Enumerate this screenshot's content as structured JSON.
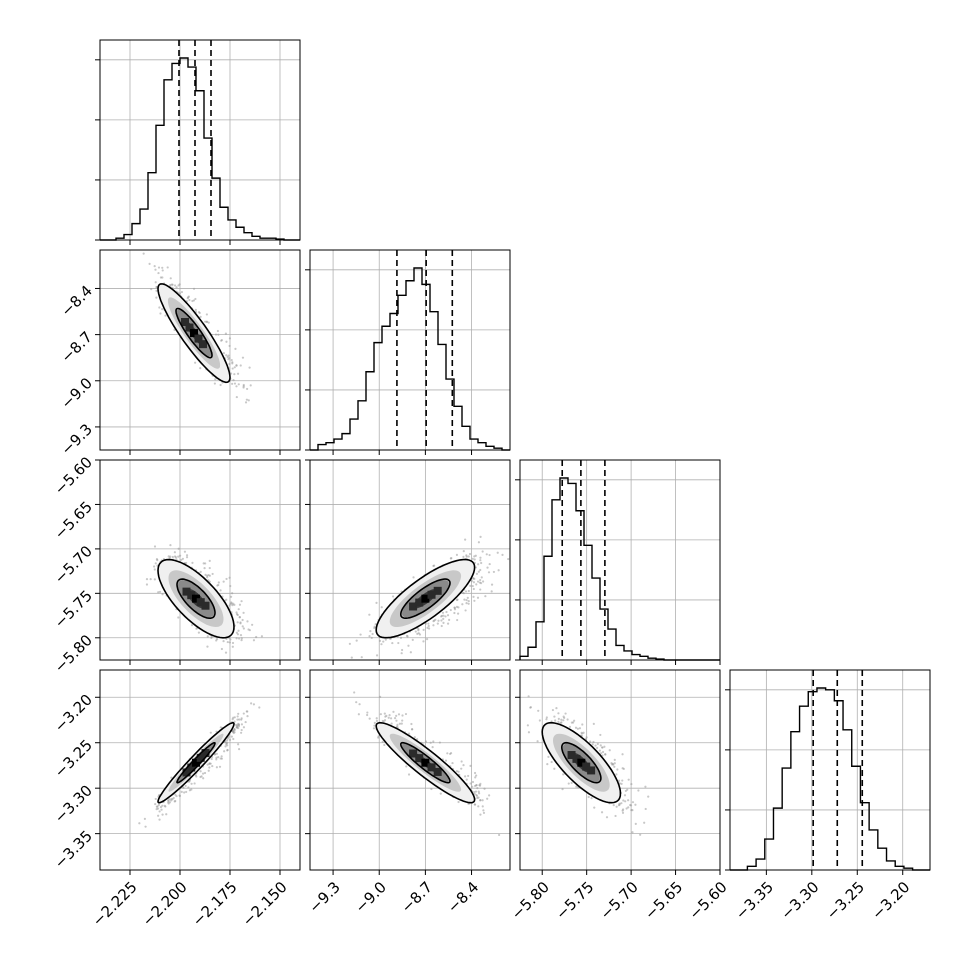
{
  "chart_data": {
    "type": "corner",
    "grid": true,
    "colors": {
      "line": "#000000",
      "grid": "#b0b0b0",
      "scatter": "#9a9a9a",
      "background": "#ffffff"
    },
    "parameters": [
      {
        "range": [
          -2.24,
          -2.14
        ],
        "ticks": [
          "−2.225",
          "−2.200",
          "−2.175",
          "−2.150"
        ],
        "tick_values": [
          -2.225,
          -2.2,
          -2.175,
          -2.15
        ],
        "quantiles": [
          -2.2005,
          -2.1925,
          -2.1845
        ],
        "hist": [
          0,
          0,
          0.01,
          0.03,
          0.09,
          0.17,
          0.37,
          0.63,
          0.88,
          0.97,
          1.0,
          0.95,
          0.82,
          0.56,
          0.34,
          0.18,
          0.11,
          0.07,
          0.04,
          0.02,
          0.01,
          0.01,
          0.005,
          0,
          0
        ]
      },
      {
        "range": [
          -9.45,
          -8.15
        ],
        "ticks": [
          "−9.3",
          "−9.0",
          "−8.7",
          "−8.4"
        ],
        "tick_values": [
          -9.3,
          -9.0,
          -8.7,
          -8.4
        ],
        "quantiles": [
          -8.885,
          -8.695,
          -8.525
        ],
        "hist": [
          0,
          0.03,
          0.04,
          0.06,
          0.09,
          0.17,
          0.27,
          0.43,
          0.59,
          0.68,
          0.75,
          0.85,
          0.93,
          1.0,
          0.91,
          0.76,
          0.58,
          0.39,
          0.24,
          0.13,
          0.06,
          0.04,
          0.02,
          0.01,
          0
        ]
      },
      {
        "range": [
          -5.825,
          -5.6
        ],
        "ticks": [
          "−5.80",
          "−5.75",
          "−5.70",
          "−5.65",
          "−5.60"
        ],
        "tick_values": [
          -5.8,
          -5.75,
          -5.7,
          -5.65,
          -5.6
        ],
        "quantiles": [
          -5.7775,
          -5.7565,
          -5.7295
        ],
        "hist": [
          0.02,
          0.07,
          0.21,
          0.57,
          0.88,
          1.0,
          0.97,
          0.82,
          0.63,
          0.45,
          0.28,
          0.17,
          0.08,
          0.05,
          0.03,
          0.02,
          0.01,
          0.005,
          0,
          0,
          0,
          0,
          0,
          0,
          0
        ]
      },
      {
        "range": [
          -3.39,
          -3.17
        ],
        "ticks": [
          "−3.35",
          "−3.30",
          "−3.25",
          "−3.20"
        ],
        "tick_values": [
          -3.35,
          -3.3,
          -3.25,
          -3.2
        ],
        "quantiles": [
          -3.2985,
          -3.272,
          -3.2445
        ],
        "hist": [
          0,
          0,
          0.02,
          0.06,
          0.17,
          0.34,
          0.56,
          0.76,
          0.9,
          0.98,
          1.0,
          0.99,
          0.93,
          0.77,
          0.57,
          0.37,
          0.22,
          0.12,
          0.05,
          0.02,
          0.01,
          0,
          0
        ]
      }
    ],
    "pairs": [
      {
        "x": 0,
        "y": 1,
        "center": [
          -2.193,
          -8.69
        ],
        "sigma": [
          0.009,
          0.16
        ],
        "rho": -0.9
      },
      {
        "x": 0,
        "y": 2,
        "center": [
          -2.192,
          -5.756
        ],
        "sigma": [
          0.0095,
          0.022
        ],
        "rho": -0.72
      },
      {
        "x": 1,
        "y": 2,
        "center": [
          -8.7,
          -5.756
        ],
        "sigma": [
          0.16,
          0.022
        ],
        "rho": 0.8
      },
      {
        "x": 0,
        "y": 3,
        "center": [
          -2.192,
          -3.272
        ],
        "sigma": [
          0.0095,
          0.022
        ],
        "rho": 0.97
      },
      {
        "x": 1,
        "y": 3,
        "center": [
          -8.7,
          -3.272
        ],
        "sigma": [
          0.16,
          0.022
        ],
        "rho": -0.92
      },
      {
        "x": 2,
        "y": 3,
        "center": [
          -5.756,
          -3.272
        ],
        "sigma": [
          0.022,
          0.022
        ],
        "rho": -0.77
      }
    ]
  }
}
